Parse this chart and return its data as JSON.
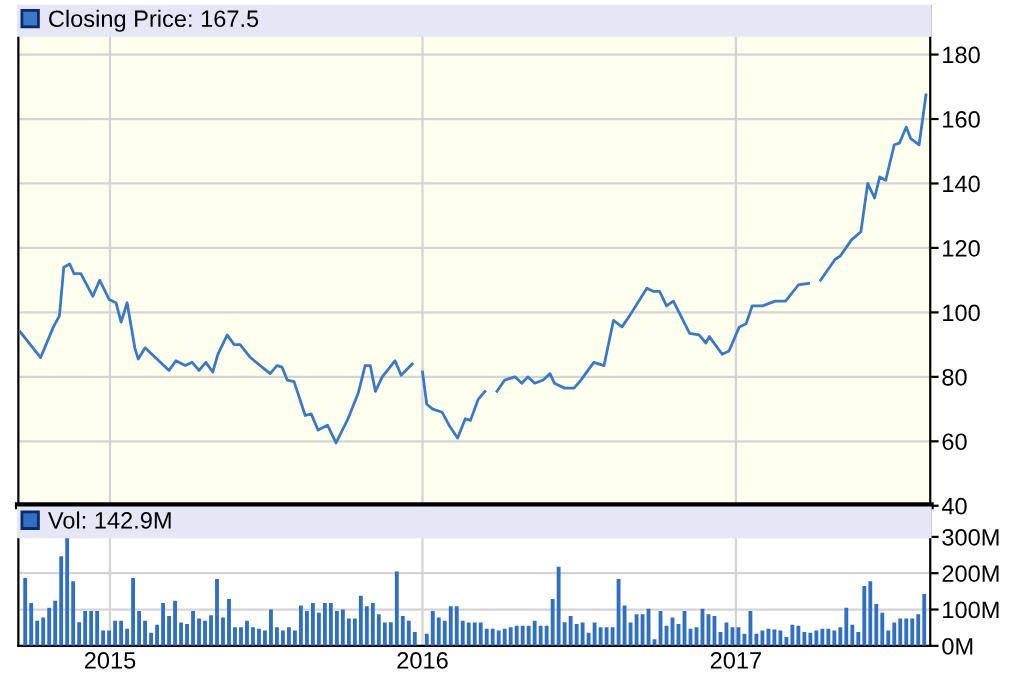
{
  "chart_data": [
    {
      "type": "line",
      "legend": "top left",
      "grid": true,
      "tick_labels": "y",
      "marker": "none",
      "line_style": "solid",
      "xlim": [
        "2014-09-16",
        "2017-08-16"
      ],
      "xticks": [
        {
          "value": "2015-01-01",
          "label": null
        },
        {
          "value": "2016-01-01",
          "label": null
        },
        {
          "value": "2017-01-01",
          "label": null
        }
      ],
      "ylim": [
        40,
        195
      ],
      "yticks": [
        40,
        60,
        80,
        100,
        120,
        140,
        160,
        180
      ],
      "series": [
        {
          "name": "Closing Price: 167.5",
          "color": "#3a78c8",
          "x": [
            "2014-09-18",
            "2014-10-12",
            "2014-10-27",
            "2014-11-03",
            "2014-11-08",
            "2014-11-15",
            "2014-11-20",
            "2014-11-28",
            "2014-12-12",
            "2014-12-20",
            "2014-12-31",
            "2015-01-08",
            "2015-01-14",
            "2015-01-21",
            "2015-01-30",
            "2015-02-03",
            "2015-02-11",
            "2015-03-03",
            "2015-03-11",
            "2015-03-19",
            "2015-03-30",
            "2015-04-07",
            "2015-04-15",
            "2015-04-23",
            "2015-05-01",
            "2015-05-07",
            "2015-05-18",
            "2015-05-26",
            "2015-06-02",
            "2015-06-14",
            "2015-07-07",
            "2015-07-15",
            "2015-07-21",
            "2015-07-27",
            "2015-08-04",
            "2015-08-17",
            "2015-08-24",
            "2015-09-01",
            "2015-09-12",
            "2015-09-22",
            "2015-10-06",
            "2015-10-18",
            "2015-10-26",
            "2015-11-01",
            "2015-11-07",
            "2015-11-15",
            "2015-11-30",
            "2015-12-07",
            "2015-12-20",
            "2015-12-26",
            "2016-01-01",
            "2016-01-06",
            "2016-01-13",
            "2016-01-24",
            "2016-02-01",
            "2016-02-11",
            "2016-02-20",
            "2016-02-26",
            "2016-03-06",
            "2016-03-14",
            "2016-03-21",
            "2016-03-28",
            "2016-04-06",
            "2016-04-18",
            "2016-04-26",
            "2016-05-03",
            "2016-05-11",
            "2016-05-21",
            "2016-05-29",
            "2016-06-03",
            "2016-06-15",
            "2016-06-26",
            "2016-07-04",
            "2016-07-19",
            "2016-07-31",
            "2016-08-11",
            "2016-08-21",
            "2016-08-30",
            "2016-09-19",
            "2016-09-27",
            "2016-10-04",
            "2016-10-12",
            "2016-10-20",
            "2016-11-08",
            "2016-11-19",
            "2016-11-27",
            "2016-12-01",
            "2016-12-16",
            "2016-12-24",
            "2017-01-05",
            "2017-01-13",
            "2017-01-20",
            "2017-02-01",
            "2017-02-16",
            "2017-02-28",
            "2017-03-15",
            "2017-03-27",
            "2017-04-03",
            "2017-04-10",
            "2017-04-27",
            "2017-05-03",
            "2017-05-16",
            "2017-05-27",
            "2017-06-04",
            "2017-06-12",
            "2017-06-18",
            "2017-06-25",
            "2017-07-05",
            "2017-07-11",
            "2017-07-19",
            "2017-07-24",
            "2017-08-03",
            "2017-08-11"
          ],
          "values": [
            94,
            86,
            95.5,
            99,
            114,
            115,
            112,
            112,
            105,
            110,
            104,
            103,
            97,
            103,
            89,
            85.5,
            89,
            84,
            82,
            85,
            83.5,
            84.5,
            82,
            84.5,
            81.5,
            87,
            93,
            90,
            90,
            86,
            81,
            83.5,
            83,
            79,
            78.5,
            68,
            68.5,
            63.5,
            65,
            59.5,
            67,
            75,
            83.5,
            83.5,
            75.5,
            80,
            85,
            80.5,
            84,
            null,
            81.5,
            71.5,
            70,
            69,
            65,
            61,
            67,
            66.5,
            73,
            75.5,
            null,
            75.5,
            79,
            80,
            78,
            80,
            78,
            79,
            81,
            78,
            76.5,
            76.5,
            79,
            84.5,
            83.5,
            97.5,
            95.5,
            99,
            107.5,
            106.5,
            106.5,
            102,
            103.5,
            93.5,
            93,
            90.5,
            92.5,
            87,
            88,
            95.5,
            96.5,
            102,
            102,
            103.5,
            103.5,
            108.5,
            109,
            null,
            110,
            116.5,
            117.5,
            122.5,
            125,
            140,
            135.5,
            142,
            141,
            152,
            152.5,
            157.5,
            154,
            152,
            167.5
          ]
        }
      ]
    },
    {
      "type": "bar",
      "legend": "top left",
      "grid": true,
      "xlim": [
        "2014-09-16",
        "2017-08-16"
      ],
      "xticks": [
        {
          "value": "2015-01-01",
          "label": "2015"
        },
        {
          "value": "2016-01-01",
          "label": "2016"
        },
        {
          "value": "2017-01-01",
          "label": "2017"
        }
      ],
      "ylim": [
        0,
        380
      ],
      "yticks": [
        {
          "value": 0,
          "label": "0M"
        },
        {
          "value": 100,
          "label": "100M"
        },
        {
          "value": 200,
          "label": "200M"
        },
        {
          "value": 300,
          "label": "300M"
        }
      ],
      "x": [
        "2014-09-24",
        "2014-10-01",
        "2014-10-08",
        "2014-10-15",
        "2014-10-22",
        "2014-10-29",
        "2014-11-05",
        "2014-11-12",
        "2014-11-19",
        "2014-11-26",
        "2014-12-03",
        "2014-12-10",
        "2014-12-17",
        "2014-12-24",
        "2014-12-31",
        "2015-01-07",
        "2015-01-14",
        "2015-01-21",
        "2015-01-28",
        "2015-02-04",
        "2015-02-11",
        "2015-02-18",
        "2015-02-25",
        "2015-03-04",
        "2015-03-11",
        "2015-03-18",
        "2015-03-25",
        "2015-04-01",
        "2015-04-08",
        "2015-04-15",
        "2015-04-22",
        "2015-04-29",
        "2015-05-06",
        "2015-05-13",
        "2015-05-20",
        "2015-05-27",
        "2015-06-03",
        "2015-06-10",
        "2015-06-17",
        "2015-06-24",
        "2015-07-01",
        "2015-07-08",
        "2015-07-15",
        "2015-07-22",
        "2015-07-29",
        "2015-08-05",
        "2015-08-12",
        "2015-08-19",
        "2015-08-26",
        "2015-09-02",
        "2015-09-09",
        "2015-09-16",
        "2015-09-23",
        "2015-09-30",
        "2015-10-07",
        "2015-10-14",
        "2015-10-21",
        "2015-10-28",
        "2015-11-04",
        "2015-11-11",
        "2015-11-18",
        "2015-11-25",
        "2015-12-02",
        "2015-12-09",
        "2015-12-16",
        "2015-12-23",
        "2015-12-30",
        "2016-01-06",
        "2016-01-13",
        "2016-01-20",
        "2016-01-27",
        "2016-02-03",
        "2016-02-10",
        "2016-02-17",
        "2016-02-24",
        "2016-03-02",
        "2016-03-09",
        "2016-03-16",
        "2016-03-23",
        "2016-03-30",
        "2016-04-06",
        "2016-04-13",
        "2016-04-20",
        "2016-04-27",
        "2016-05-04",
        "2016-05-11",
        "2016-05-18",
        "2016-05-25",
        "2016-06-01",
        "2016-06-08",
        "2016-06-15",
        "2016-06-22",
        "2016-06-29",
        "2016-07-06",
        "2016-07-13",
        "2016-07-20",
        "2016-07-27",
        "2016-08-03",
        "2016-08-10",
        "2016-08-17",
        "2016-08-24",
        "2016-08-31",
        "2016-09-07",
        "2016-09-14",
        "2016-09-21",
        "2016-09-28",
        "2016-10-05",
        "2016-10-12",
        "2016-10-19",
        "2016-10-26",
        "2016-11-02",
        "2016-11-09",
        "2016-11-16",
        "2016-11-23",
        "2016-11-30",
        "2016-12-07",
        "2016-12-14",
        "2016-12-21",
        "2016-12-28",
        "2017-01-04",
        "2017-01-11",
        "2017-01-18",
        "2017-01-25",
        "2017-02-01",
        "2017-02-08",
        "2017-02-15",
        "2017-02-22",
        "2017-03-01",
        "2017-03-08",
        "2017-03-15",
        "2017-03-22",
        "2017-03-29",
        "2017-04-05",
        "2017-04-12",
        "2017-04-19",
        "2017-04-26",
        "2017-05-03",
        "2017-05-10",
        "2017-05-17",
        "2017-05-24",
        "2017-05-31",
        "2017-06-07",
        "2017-06-14",
        "2017-06-21",
        "2017-06-28",
        "2017-07-05",
        "2017-07-12",
        "2017-07-19",
        "2017-07-26",
        "2017-08-02",
        "2017-08-09"
      ],
      "series": [
        {
          "name": "Vol: 142.9M",
          "color": "#2f6fc4",
          "values": [
            187,
            118,
            69,
            78,
            105,
            124,
            247,
            302,
            178,
            65,
            96,
            96,
            96,
            42,
            42,
            69,
            69,
            47,
            187,
            96,
            69,
            36,
            58,
            118,
            82,
            124,
            64,
            60,
            96,
            75,
            69,
            84,
            184,
            78,
            129,
            51,
            51,
            69,
            51,
            47,
            42,
            100,
            51,
            42,
            51,
            42,
            111,
            96,
            118,
            91,
            118,
            118,
            96,
            100,
            75,
            75,
            138,
            109,
            118,
            87,
            64,
            65,
            205,
            82,
            69,
            38,
            null,
            33,
            96,
            78,
            69,
            109,
            109,
            69,
            64,
            64,
            64,
            47,
            47,
            42,
            47,
            51,
            55,
            55,
            55,
            69,
            55,
            55,
            129,
            218,
            65,
            82,
            60,
            64,
            36,
            64,
            51,
            51,
            51,
            184,
            111,
            64,
            87,
            87,
            102,
            18,
            96,
            55,
            78,
            60,
            96,
            47,
            51,
            102,
            87,
            82,
            38,
            64,
            51,
            51,
            33,
            96,
            33,
            42,
            47,
            45,
            42,
            24,
            58,
            55,
            38,
            36,
            42,
            47,
            47,
            42,
            51,
            105,
            58,
            38,
            165,
            178,
            115,
            91,
            42,
            64,
            75,
            75,
            75,
            87,
            142.9
          ]
        }
      ]
    }
  ]
}
